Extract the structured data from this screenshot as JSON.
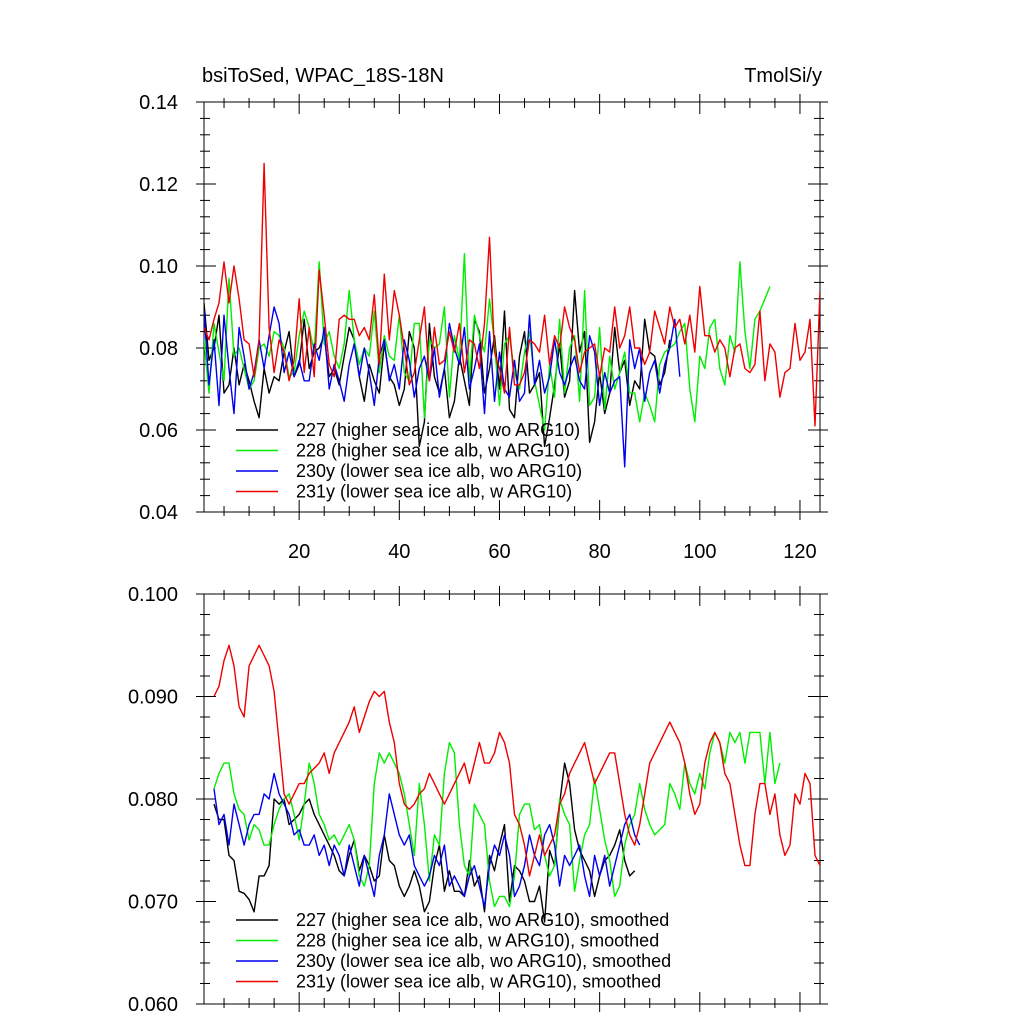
{
  "chart_data": [
    {
      "type": "line",
      "title_left": "bsiToSed, WPAC_18S-18N",
      "title_right": "TmolSi/y",
      "xlabel": "",
      "ylabel": "",
      "xlim": [
        1,
        124
      ],
      "ylim": [
        0.04,
        0.14
      ],
      "yticks": [
        "0.04",
        "0.06",
        "0.08",
        "0.10",
        "0.12",
        "0.14"
      ],
      "xticks": [
        "20",
        "40",
        "60",
        "80",
        "100",
        "120"
      ],
      "legend_position": "bottom-left",
      "series": [
        {
          "name": "227 (higher sea ice alb, wo ARG10)",
          "color": "#000000",
          "x_start": 1,
          "values": [
            0.091,
            0.077,
            0.08,
            0.088,
            0.069,
            0.071,
            0.08,
            0.071,
            0.076,
            0.072,
            0.067,
            0.063,
            0.075,
            0.069,
            0.073,
            0.072,
            0.079,
            0.084,
            0.073,
            0.076,
            0.087,
            0.075,
            0.079,
            0.08,
            0.083,
            0.073,
            0.075,
            0.071,
            0.078,
            0.085,
            0.082,
            0.073,
            0.067,
            0.076,
            0.072,
            0.069,
            0.081,
            0.073,
            0.071,
            0.066,
            0.07,
            0.084,
            0.08,
            0.056,
            0.062,
            0.086,
            0.073,
            0.069,
            0.075,
            0.063,
            0.067,
            0.078,
            0.072,
            0.066,
            0.087,
            0.084,
            0.069,
            0.075,
            0.083,
            0.07,
            0.089,
            0.065,
            0.063,
            0.078,
            0.084,
            0.069,
            0.071,
            0.074,
            0.056,
            0.063,
            0.071,
            0.081,
            0.068,
            0.072,
            0.094,
            0.079,
            0.084,
            0.057,
            0.062,
            0.074,
            0.064,
            0.069,
            0.085,
            0.074,
            0.077,
            0.066,
            0.072,
            0.07,
            0.087,
            0.079,
            0.078,
            0.071,
            0.074,
            0.082
          ]
        },
        {
          "name": "228 (higher sea ice alb, w ARG10)",
          "color": "#00ee00",
          "x_start": 1,
          "values": [
            0.082,
            0.069,
            0.086,
            0.079,
            0.072,
            0.097,
            0.078,
            0.08,
            0.075,
            0.07,
            0.072,
            0.08,
            0.081,
            0.078,
            0.084,
            0.083,
            0.08,
            0.073,
            0.074,
            0.083,
            0.089,
            0.085,
            0.079,
            0.101,
            0.081,
            0.084,
            0.078,
            0.075,
            0.081,
            0.094,
            0.082,
            0.076,
            0.08,
            0.078,
            0.089,
            0.074,
            0.083,
            0.078,
            0.077,
            0.088,
            0.074,
            0.072,
            0.086,
            0.086,
            0.063,
            0.082,
            0.08,
            0.081,
            0.09,
            0.068,
            0.083,
            0.077,
            0.103,
            0.072,
            0.088,
            0.083,
            0.079,
            0.092,
            0.081,
            0.066,
            0.081,
            0.083,
            0.074,
            0.07,
            0.079,
            0.084,
            0.072,
            0.066,
            0.06,
            0.076,
            0.068,
            0.087,
            0.069,
            0.08,
            0.083,
            0.067,
            0.094,
            0.066,
            0.068,
            0.085,
            0.065,
            0.078,
            0.07,
            0.074,
            0.079,
            0.069,
            0.069,
            0.062,
            0.069,
            0.066,
            0.062,
            0.076,
            0.079,
            0.08,
            0.081,
            0.084,
            0.086,
            0.07,
            0.062,
            0.078,
            0.075,
            0.085,
            0.087,
            0.075,
            0.071,
            0.083,
            0.079,
            0.101,
            0.084,
            0.075,
            0.087,
            0.089,
            0.092,
            0.095
          ]
        },
        {
          "name": "230y (lower sea ice alb, wo ARG10)",
          "color": "#0000ee",
          "x_start": 1,
          "values": [
            0.089,
            0.071,
            0.082,
            0.066,
            0.088,
            0.075,
            0.064,
            0.085,
            0.078,
            0.07,
            0.074,
            0.082,
            0.075,
            0.083,
            0.09,
            0.086,
            0.074,
            0.079,
            0.073,
            0.077,
            0.072,
            0.072,
            0.081,
            0.077,
            0.085,
            0.07,
            0.076,
            0.072,
            0.067,
            0.076,
            0.081,
            0.073,
            0.08,
            0.074,
            0.066,
            0.078,
            0.082,
            0.072,
            0.076,
            0.07,
            0.082,
            0.077,
            0.068,
            0.075,
            0.078,
            0.072,
            0.08,
            0.068,
            0.075,
            0.086,
            0.08,
            0.076,
            0.085,
            0.07,
            0.075,
            0.081,
            0.064,
            0.084,
            0.067,
            0.079,
            0.07,
            0.068,
            0.077,
            0.067,
            0.069,
            0.088,
            0.071,
            0.077,
            0.069,
            0.073,
            0.082,
            0.074,
            0.071,
            0.075,
            0.078,
            0.072,
            0.07,
            0.083,
            0.079,
            0.066,
            0.074,
            0.069,
            0.072,
            0.073,
            0.051,
            0.082,
            0.075,
            0.08,
            0.067,
            0.074,
            0.077,
            0.069,
            0.076,
            0.08,
            0.087,
            0.073
          ]
        },
        {
          "name": "231y (lower sea ice alb, w ARG10)",
          "color": "#ee0000",
          "x_start": 1,
          "values": [
            0.085,
            0.082,
            0.087,
            0.091,
            0.101,
            0.091,
            0.1,
            0.092,
            0.082,
            0.081,
            0.073,
            0.082,
            0.125,
            0.085,
            0.074,
            0.082,
            0.079,
            0.072,
            0.077,
            0.092,
            0.074,
            0.085,
            0.073,
            0.099,
            0.088,
            0.076,
            0.073,
            0.087,
            0.088,
            0.087,
            0.087,
            0.083,
            0.085,
            0.082,
            0.093,
            0.076,
            0.098,
            0.082,
            0.094,
            0.088,
            0.08,
            0.071,
            0.074,
            0.082,
            0.09,
            0.072,
            0.085,
            0.076,
            0.077,
            0.084,
            0.079,
            0.086,
            0.074,
            0.082,
            0.081,
            0.075,
            0.086,
            0.107,
            0.079,
            0.075,
            0.069,
            0.085,
            0.071,
            0.071,
            0.074,
            0.082,
            0.081,
            0.079,
            0.088,
            0.076,
            0.083,
            0.08,
            0.09,
            0.085,
            0.082,
            0.074,
            0.079,
            0.08,
            0.081,
            0.073,
            0.08,
            0.079,
            0.09,
            0.08,
            0.083,
            0.09,
            0.08,
            0.08,
            0.076,
            0.079,
            0.089,
            0.085,
            0.081,
            0.09,
            0.085,
            0.087,
            0.081,
            0.088,
            0.079,
            0.095,
            0.083,
            0.083,
            0.079,
            0.082,
            0.08,
            0.073,
            0.08,
            0.081,
            0.075,
            0.074,
            0.076,
            0.089,
            0.072,
            0.081,
            0.079,
            0.068,
            0.074,
            0.075,
            0.086,
            0.077,
            0.079,
            0.087,
            0.061,
            0.094
          ]
        }
      ]
    },
    {
      "type": "line",
      "title_left": "",
      "title_right": "",
      "xlabel": "",
      "ylabel": "",
      "xlim": [
        1,
        124
      ],
      "ylim": [
        0.06,
        0.1
      ],
      "yticks": [
        "0.060",
        "0.070",
        "0.080",
        "0.090",
        "0.100"
      ],
      "legend_position": "bottom-left",
      "series": [
        {
          "name": "227 (higher sea ice alb, wo ARG10), smoothed",
          "color": "#000000",
          "x_start": 3,
          "values": [
            0.0795,
            0.078,
            0.078,
            0.0745,
            0.074,
            0.071,
            0.0708,
            0.0702,
            0.069,
            0.0725,
            0.0725,
            0.0735,
            0.08,
            0.0795,
            0.08,
            0.0775,
            0.078,
            0.0785,
            0.0795,
            0.08,
            0.0785,
            0.0775,
            0.0765,
            0.0755,
            0.0745,
            0.073,
            0.0725,
            0.0745,
            0.076,
            0.073,
            0.0745,
            0.0735,
            0.072,
            0.0725,
            0.0765,
            0.074,
            0.0735,
            0.0715,
            0.0705,
            0.0715,
            0.073,
            0.0715,
            0.069,
            0.07,
            0.0735,
            0.0755,
            0.071,
            0.073,
            0.071,
            0.071,
            0.0705,
            0.074,
            0.0715,
            0.0725,
            0.069,
            0.0745,
            0.073,
            0.0755,
            0.0775,
            0.07,
            0.0735,
            0.073,
            0.072,
            0.07,
            0.07,
            0.0715,
            0.068,
            0.075,
            0.0735,
            0.0795,
            0.0835,
            0.0815,
            0.077,
            0.075,
            0.074,
            0.073,
            0.0705,
            0.0725,
            0.074,
            0.0745,
            0.0755,
            0.077,
            0.074,
            0.0725,
            0.073
          ]
        },
        {
          "name": "228 (higher sea ice alb, w ARG10), smoothed",
          "color": "#00ee00",
          "x_start": 3,
          "values": [
            0.081,
            0.0825,
            0.0835,
            0.0835,
            0.0805,
            0.079,
            0.0785,
            0.076,
            0.0775,
            0.077,
            0.0755,
            0.0755,
            0.0775,
            0.079,
            0.08,
            0.0805,
            0.0785,
            0.076,
            0.0795,
            0.0835,
            0.0815,
            0.0785,
            0.0775,
            0.076,
            0.0765,
            0.0755,
            0.0765,
            0.0775,
            0.076,
            0.0725,
            0.0715,
            0.0735,
            0.0815,
            0.0845,
            0.0835,
            0.0845,
            0.0835,
            0.0825,
            0.0805,
            0.0775,
            0.0745,
            0.0815,
            0.0775,
            0.072,
            0.0765,
            0.0755,
            0.0825,
            0.0855,
            0.0845,
            0.0775,
            0.0735,
            0.0725,
            0.0795,
            0.0785,
            0.0775,
            0.072,
            0.0695,
            0.0705,
            0.0705,
            0.0695,
            0.0725,
            0.0785,
            0.0795,
            0.0795,
            0.077,
            0.0775,
            0.0745,
            0.0725,
            0.0735,
            0.08,
            0.0785,
            0.0775,
            0.071,
            0.074,
            0.0765,
            0.0775,
            0.082,
            0.079,
            0.076,
            0.074,
            0.0705,
            0.0715,
            0.0755,
            0.0775,
            0.0785,
            0.0815,
            0.079,
            0.0775,
            0.0765,
            0.077,
            0.0775,
            0.0815,
            0.0805,
            0.079,
            0.0835,
            0.0815,
            0.0805,
            0.0825,
            0.081,
            0.0845,
            0.0865,
            0.0855,
            0.0835,
            0.0865,
            0.0855,
            0.0865,
            0.0835,
            0.0865,
            0.0865,
            0.0865,
            0.0815,
            0.0865,
            0.0815,
            0.0835
          ]
        },
        {
          "name": "230y (lower sea ice alb, wo ARG10), smoothed",
          "color": "#0000ee",
          "x_start": 3,
          "values": [
            0.081,
            0.0775,
            0.0785,
            0.0755,
            0.0795,
            0.0775,
            0.0755,
            0.0775,
            0.0785,
            0.0785,
            0.0805,
            0.08,
            0.0825,
            0.0805,
            0.0795,
            0.0785,
            0.0765,
            0.077,
            0.0755,
            0.0755,
            0.0765,
            0.0745,
            0.0755,
            0.0735,
            0.0755,
            0.0745,
            0.0725,
            0.0755,
            0.0735,
            0.0715,
            0.0745,
            0.0725,
            0.0705,
            0.0745,
            0.0765,
            0.0805,
            0.0785,
            0.0765,
            0.0755,
            0.0765,
            0.0735,
            0.0725,
            0.0715,
            0.0725,
            0.0745,
            0.0735,
            0.0755,
            0.0715,
            0.0725,
            0.0715,
            0.0705,
            0.0725,
            0.0735,
            0.0715,
            0.0695,
            0.0735,
            0.0755,
            0.0745,
            0.0765,
            0.0745,
            0.0705,
            0.0715,
            0.0735,
            0.0765,
            0.0745,
            0.0735,
            0.0765,
            0.0775,
            0.0755,
            0.0715,
            0.0745,
            0.0735,
            0.0745,
            0.0755,
            0.0725,
            0.0705,
            0.0745,
            0.0725,
            0.0745,
            0.0715,
            0.0735,
            0.0755,
            0.0775,
            0.0785,
            0.0765,
            0.0755
          ]
        },
        {
          "name": "231y (lower sea ice alb, w ARG10), smoothed",
          "color": "#ee0000",
          "x_start": 3,
          "values": [
            0.09,
            0.091,
            0.0935,
            0.095,
            0.093,
            0.089,
            0.088,
            0.093,
            0.094,
            0.095,
            0.094,
            0.093,
            0.0905,
            0.0855,
            0.0805,
            0.0795,
            0.0805,
            0.0815,
            0.0815,
            0.0825,
            0.083,
            0.0835,
            0.0845,
            0.0825,
            0.0845,
            0.0855,
            0.0865,
            0.0875,
            0.089,
            0.0865,
            0.088,
            0.0895,
            0.0905,
            0.09,
            0.0905,
            0.0875,
            0.0855,
            0.0815,
            0.0795,
            0.079,
            0.0795,
            0.0805,
            0.081,
            0.0825,
            0.0815,
            0.0805,
            0.0795,
            0.0805,
            0.0815,
            0.0825,
            0.0835,
            0.0815,
            0.0835,
            0.0855,
            0.0835,
            0.0835,
            0.0845,
            0.0865,
            0.0855,
            0.0835,
            0.0785,
            0.0775,
            0.0755,
            0.0725,
            0.0745,
            0.0765,
            0.0745,
            0.0755,
            0.0765,
            0.0795,
            0.0805,
            0.0825,
            0.0835,
            0.0845,
            0.0855,
            0.0835,
            0.0815,
            0.0825,
            0.0835,
            0.0845,
            0.0845,
            0.0815,
            0.0785,
            0.0765,
            0.0755,
            0.0775,
            0.0805,
            0.0835,
            0.0845,
            0.0855,
            0.0865,
            0.0875,
            0.0865,
            0.0855,
            0.0835,
            0.0805,
            0.0785,
            0.0795,
            0.0835,
            0.0855,
            0.0865,
            0.0855,
            0.0825,
            0.0815,
            0.0785,
            0.0755,
            0.0735,
            0.0735,
            0.0785,
            0.0815,
            0.0815,
            0.0785,
            0.0805,
            0.0765,
            0.0745,
            0.0755,
            0.0805,
            0.0795,
            0.0825,
            0.0815,
            0.0745,
            0.0735,
            0.0745,
            0.0775,
            0.0805
          ]
        }
      ]
    }
  ]
}
